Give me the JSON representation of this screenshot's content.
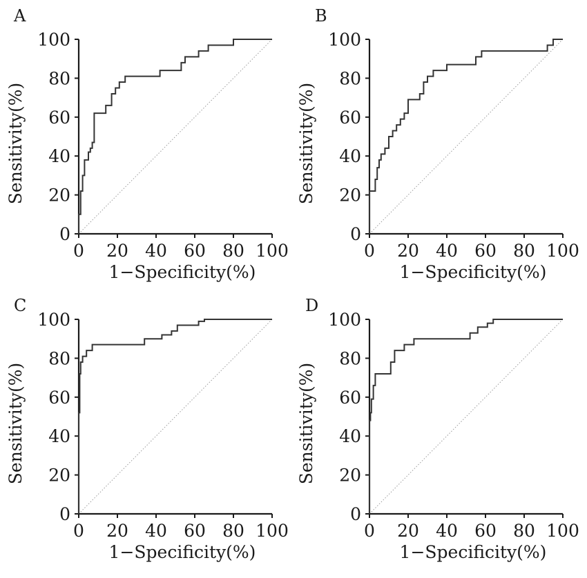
{
  "chart_data": [
    {
      "type": "line",
      "panel": "A",
      "xlabel": "1−Specificity(%)",
      "ylabel": "Sensitivity(%)",
      "xlim": [
        0,
        100
      ],
      "ylim": [
        0,
        100
      ],
      "xticks": [
        0,
        20,
        40,
        60,
        80,
        100
      ],
      "yticks": [
        0,
        20,
        40,
        60,
        80,
        100
      ],
      "reference_line": true,
      "series": [
        {
          "x": [
            0,
            0,
            1,
            1,
            2,
            2,
            3,
            3,
            5,
            5,
            6,
            6,
            7,
            7,
            8,
            8,
            14,
            14,
            17,
            17,
            19,
            19,
            21,
            21,
            24,
            24,
            42,
            42,
            53,
            53,
            55,
            55,
            62,
            62,
            67,
            67,
            80,
            80,
            100
          ],
          "y": [
            0,
            10,
            10,
            22,
            22,
            30,
            30,
            38,
            38,
            42,
            42,
            44,
            44,
            47,
            47,
            62,
            62,
            66,
            66,
            72,
            72,
            75,
            75,
            78,
            78,
            81,
            81,
            84,
            84,
            88,
            88,
            91,
            91,
            94,
            94,
            97,
            97,
            100,
            100
          ]
        }
      ]
    },
    {
      "type": "line",
      "panel": "B",
      "xlabel": "1−Specificity(%)",
      "ylabel": "Sensitivity(%)",
      "xlim": [
        0,
        100
      ],
      "ylim": [
        0,
        100
      ],
      "xticks": [
        0,
        20,
        40,
        60,
        80,
        100
      ],
      "yticks": [
        0,
        20,
        40,
        60,
        80,
        100
      ],
      "reference_line": true,
      "series": [
        {
          "x": [
            0,
            0,
            3,
            3,
            4,
            4,
            5,
            5,
            6,
            6,
            8,
            8,
            10,
            10,
            12,
            12,
            14,
            14,
            16,
            16,
            18,
            18,
            20,
            20,
            26,
            26,
            28,
            28,
            30,
            30,
            33,
            33,
            40,
            40,
            55,
            55,
            58,
            58,
            92,
            92,
            95,
            95,
            100
          ],
          "y": [
            0,
            22,
            22,
            28,
            28,
            34,
            34,
            38,
            38,
            41,
            41,
            44,
            44,
            50,
            50,
            53,
            53,
            56,
            56,
            59,
            59,
            62,
            62,
            69,
            69,
            72,
            72,
            78,
            78,
            81,
            81,
            84,
            84,
            87,
            87,
            91,
            91,
            94,
            94,
            97,
            97,
            100,
            100
          ]
        }
      ]
    },
    {
      "type": "line",
      "panel": "C",
      "xlabel": "1−Specificity(%)",
      "ylabel": "Sensitivity(%)",
      "xlim": [
        0,
        100
      ],
      "ylim": [
        0,
        100
      ],
      "xticks": [
        0,
        20,
        40,
        60,
        80,
        100
      ],
      "yticks": [
        0,
        20,
        40,
        60,
        80,
        100
      ],
      "reference_line": true,
      "series": [
        {
          "x": [
            0,
            0,
            0.5,
            0.5,
            1,
            1,
            2,
            2,
            4,
            4,
            7,
            7,
            34,
            34,
            43,
            43,
            48,
            48,
            51,
            51,
            62,
            62,
            65,
            65,
            100
          ],
          "y": [
            0,
            52,
            52,
            72,
            72,
            78,
            78,
            81,
            81,
            84,
            84,
            87,
            87,
            90,
            90,
            92,
            92,
            94,
            94,
            97,
            97,
            99,
            99,
            100,
            100
          ]
        }
      ]
    },
    {
      "type": "line",
      "panel": "D",
      "xlabel": "1−Specificity(%)",
      "ylabel": "Sensitivity(%)",
      "xlim": [
        0,
        100
      ],
      "ylim": [
        0,
        100
      ],
      "xticks": [
        0,
        20,
        40,
        60,
        80,
        100
      ],
      "yticks": [
        0,
        20,
        40,
        60,
        80,
        100
      ],
      "reference_line": true,
      "series": [
        {
          "x": [
            0,
            0,
            0.5,
            0.5,
            1,
            1,
            2,
            2,
            3,
            3,
            11,
            11,
            13,
            13,
            18,
            18,
            23,
            23,
            52,
            52,
            56,
            56,
            61,
            61,
            64,
            64,
            100
          ],
          "y": [
            0,
            48,
            48,
            52,
            52,
            59,
            59,
            66,
            66,
            72,
            72,
            78,
            78,
            84,
            84,
            87,
            87,
            90,
            90,
            93,
            93,
            96,
            96,
            98,
            98,
            100,
            100
          ]
        }
      ]
    }
  ]
}
